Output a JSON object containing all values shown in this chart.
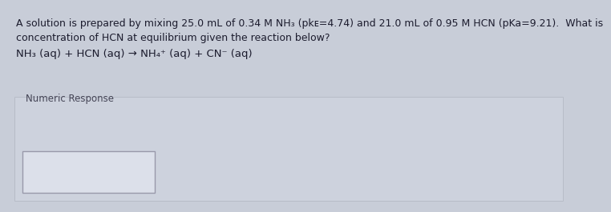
{
  "line1": "A solution is prepared by mixing 25.0 mL of 0.34 M NH₃ (pkᴇ=4.74) and 21.0 mL of 0.95 M HCN (pKa=9.21).  What is",
  "line2": "concentration of HCN at equilibrium given the reaction below?",
  "line3": "NH₃ (aq) + HCN (aq) → NH₄⁺ (aq) + CN⁻ (aq)",
  "numeric_label": "Numeric Response",
  "bg_color": "#c8cdd8",
  "lower_bg": "#cdd2dd",
  "box_color": "#dce0ea",
  "box_border": "#9999aa",
  "text_color": "#1c1c2e",
  "label_color": "#444455",
  "font_size_main": 9.0,
  "font_size_eq": 9.5,
  "font_size_label": 8.5
}
